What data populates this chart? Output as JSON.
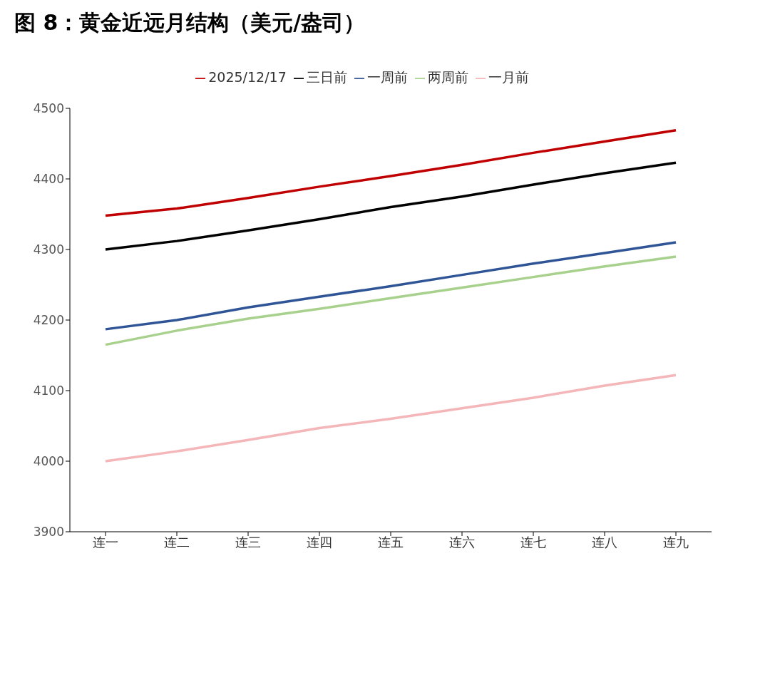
{
  "chart_data": {
    "type": "line",
    "title": "图 8：黄金近远月结构（美元/盎司）",
    "categories": [
      "连一",
      "连二",
      "连三",
      "连四",
      "连五",
      "连六",
      "连七",
      "连八",
      "连九"
    ],
    "series": [
      {
        "name": "2025/12/17",
        "color": "#c00000",
        "values": [
          4348,
          4358,
          4373,
          4389,
          4404,
          4420,
          4437,
          4453,
          4469
        ]
      },
      {
        "name": "三日前",
        "color": "#000000",
        "values": [
          4300,
          4312,
          4327,
          4343,
          4360,
          4375,
          4392,
          4408,
          4423
        ]
      },
      {
        "name": "一周前",
        "color": "#2f5597",
        "values": [
          4187,
          4200,
          4218,
          4233,
          4248,
          4264,
          4280,
          4295,
          4310
        ]
      },
      {
        "name": "两周前",
        "color": "#a9d18e",
        "values": [
          4165,
          4185,
          4202,
          4216,
          4231,
          4246,
          4261,
          4276,
          4290
        ]
      },
      {
        "name": "一月前",
        "color": "#f4b6b8",
        "values": [
          4000,
          4014,
          4030,
          4047,
          4060,
          4075,
          4090,
          4107,
          4122
        ]
      }
    ],
    "ylim": [
      3900,
      4500
    ],
    "yticks": [
      3900,
      4000,
      4100,
      4200,
      4300,
      4400,
      4500
    ],
    "grid": false,
    "legend": "top",
    "marker": "none",
    "line_style": "solid"
  }
}
